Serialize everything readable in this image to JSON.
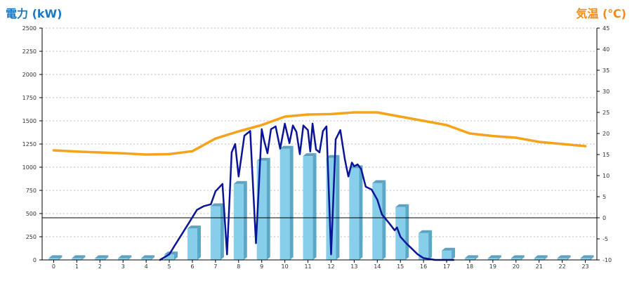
{
  "chart_data": {
    "type": "bar",
    "left_axis_title": "電力 (kW)",
    "right_axis_title": "気温 (℃)",
    "categories": [
      "0",
      "1",
      "2",
      "3",
      "4",
      "5",
      "6",
      "7",
      "8",
      "9",
      "10",
      "11",
      "12",
      "13",
      "14",
      "15",
      "16",
      "17",
      "18",
      "19",
      "20",
      "21",
      "22",
      "23"
    ],
    "left_axis": {
      "min": 0,
      "max": 2500,
      "step": 250,
      "ticks": [
        "0",
        "250",
        "500",
        "750",
        "1000",
        "1250",
        "1500",
        "1750",
        "2000",
        "2250",
        "2500"
      ]
    },
    "right_axis": {
      "min": -10,
      "max": 45,
      "step": 5,
      "ticks": [
        "-10",
        "-5",
        "0",
        "5",
        "10",
        "15",
        "20",
        "25",
        "30",
        "35",
        "40",
        "45"
      ]
    },
    "grid": true,
    "colors": {
      "bar": "#87ceeb",
      "bar_side": "#5aa7c8",
      "bar_top": "#5fa0be",
      "power_line": "#0a1496",
      "temp_line": "#f7a21b",
      "left_title": "#1a78c2",
      "right_title": "#f08a1c"
    },
    "series": [
      {
        "kind": "bar",
        "axis": "left",
        "values": [
          20,
          20,
          20,
          20,
          20,
          60,
          340,
          580,
          820,
          1070,
          1200,
          1120,
          1100,
          990,
          830,
          570,
          290,
          100,
          20,
          20,
          20,
          20,
          20,
          20
        ]
      },
      {
        "kind": "line",
        "axis": "left",
        "x": [
          4.6,
          5.0,
          5.3,
          5.6,
          5.9,
          6.2,
          6.5,
          6.8,
          7.0,
          7.3,
          7.5,
          7.7,
          7.85,
          8.0,
          8.25,
          8.5,
          8.75,
          9.0,
          9.1,
          9.25,
          9.4,
          9.6,
          9.8,
          10.0,
          10.2,
          10.35,
          10.5,
          10.65,
          10.8,
          11.0,
          11.1,
          11.2,
          11.35,
          11.5,
          11.65,
          11.8,
          12.0,
          12.2,
          12.4,
          12.6,
          12.75,
          12.9,
          13.0,
          13.15,
          13.3,
          13.5,
          13.75,
          14.0,
          14.2,
          14.5,
          14.75,
          14.85,
          15.0,
          15.25,
          15.5,
          15.75,
          16.0,
          16.25,
          16.5,
          16.8,
          17.0,
          17.3
        ],
        "values": [
          0,
          60,
          180,
          300,
          420,
          540,
          580,
          600,
          740,
          820,
          60,
          1160,
          1250,
          900,
          1340,
          1390,
          180,
          1410,
          1290,
          1150,
          1410,
          1440,
          1200,
          1470,
          1260,
          1450,
          1380,
          1140,
          1450,
          1400,
          1170,
          1470,
          1190,
          1160,
          1390,
          1440,
          60,
          1300,
          1400,
          1080,
          900,
          1050,
          1010,
          1030,
          980,
          790,
          760,
          650,
          490,
          400,
          320,
          350,
          250,
          180,
          120,
          60,
          20,
          10,
          0,
          0,
          0,
          0
        ]
      },
      {
        "kind": "line",
        "axis": "right",
        "x": [
          0,
          1,
          2,
          3,
          4,
          5,
          6,
          7,
          8,
          9,
          10,
          11,
          12,
          13,
          14,
          15,
          16,
          17,
          18,
          19,
          20,
          21,
          22,
          23
        ],
        "values": [
          16.0,
          15.7,
          15.5,
          15.3,
          15.0,
          15.1,
          15.8,
          18.8,
          20.5,
          22.0,
          24.0,
          24.5,
          24.6,
          25.0,
          25.0,
          24.0,
          23.0,
          22.0,
          20.0,
          19.4,
          19.0,
          18.0,
          17.5,
          17.0
        ]
      }
    ]
  }
}
